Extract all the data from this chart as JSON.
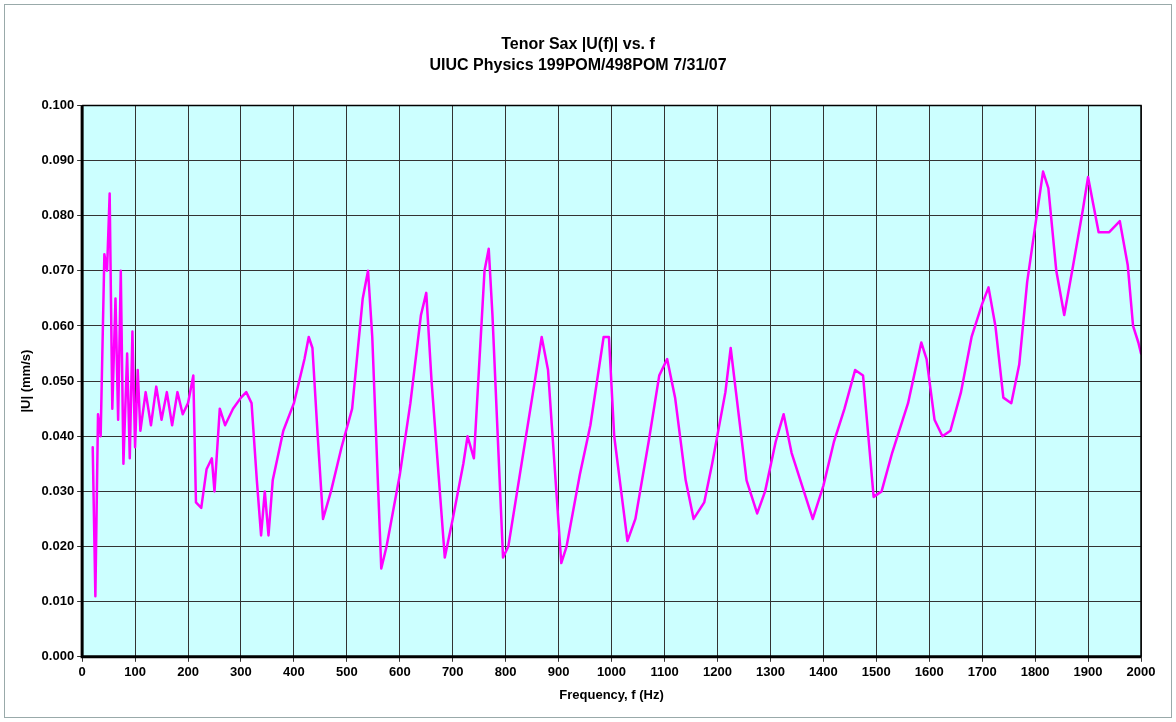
{
  "chart_data": {
    "type": "line",
    "title": "Tenor Sax |U(f)| vs. f",
    "subtitle": "UIUC Physics 199POM/498POM 7/31/07",
    "xlabel": "Frequency, f (Hz)",
    "ylabel": "|U| (mm/s)",
    "xlim": [
      0,
      2000
    ],
    "xticks": [
      0,
      100,
      200,
      300,
      400,
      500,
      600,
      700,
      800,
      900,
      1000,
      1100,
      1200,
      1300,
      1400,
      1500,
      1600,
      1700,
      1800,
      1900,
      2000
    ],
    "ylim": [
      0,
      0.1
    ],
    "yticks": [
      {
        "value": 0,
        "label": "0.000"
      },
      {
        "value": 0.01,
        "label": "0.010"
      },
      {
        "value": 0.02,
        "label": "0.020"
      },
      {
        "value": 0.03,
        "label": "0.030"
      },
      {
        "value": 0.04,
        "label": "0.040"
      },
      {
        "value": 0.05,
        "label": "0.050"
      },
      {
        "value": 0.06,
        "label": "0.060"
      },
      {
        "value": 0.07,
        "label": "0.070"
      },
      {
        "value": 0.08,
        "label": "0.080"
      },
      {
        "value": 0.09,
        "label": "0.090"
      },
      {
        "value": 0.1,
        "label": "0.100"
      }
    ],
    "grid": true,
    "legend": false,
    "marker": "none",
    "line_style": "solid",
    "series": [
      {
        "color": "#ff00ff",
        "x": [
          20,
          25,
          30,
          35,
          42,
          47,
          52,
          57,
          63,
          68,
          73,
          78,
          85,
          90,
          95,
          100,
          105,
          110,
          120,
          130,
          140,
          150,
          160,
          170,
          180,
          190,
          200,
          210,
          215,
          225,
          235,
          245,
          250,
          260,
          270,
          285,
          300,
          310,
          320,
          330,
          338,
          345,
          352,
          360,
          380,
          400,
          420,
          428,
          435,
          445,
          455,
          470,
          490,
          510,
          530,
          540,
          548,
          565,
          575,
          600,
          620,
          640,
          650,
          660,
          685,
          700,
          720,
          728,
          740,
          760,
          768,
          775,
          795,
          805,
          830,
          855,
          868,
          880,
          905,
          915,
          940,
          960,
          985,
          995,
          1005,
          1030,
          1045,
          1070,
          1090,
          1105,
          1120,
          1140,
          1155,
          1175,
          1190,
          1215,
          1225,
          1235,
          1255,
          1275,
          1290,
          1310,
          1325,
          1340,
          1360,
          1380,
          1400,
          1420,
          1440,
          1460,
          1475,
          1485,
          1495,
          1510,
          1530,
          1560,
          1585,
          1595,
          1610,
          1625,
          1640,
          1660,
          1680,
          1700,
          1712,
          1725,
          1740,
          1755,
          1770,
          1785,
          1800,
          1815,
          1825,
          1840,
          1855,
          1870,
          1890,
          1900,
          1910,
          1920,
          1940,
          1960,
          1975,
          1985,
          1995,
          2000
        ],
        "values": [
          0.038,
          0.011,
          0.044,
          0.04,
          0.073,
          0.07,
          0.084,
          0.045,
          0.065,
          0.043,
          0.07,
          0.035,
          0.055,
          0.036,
          0.059,
          0.038,
          0.052,
          0.041,
          0.048,
          0.042,
          0.049,
          0.043,
          0.048,
          0.042,
          0.048,
          0.044,
          0.046,
          0.051,
          0.028,
          0.027,
          0.034,
          0.036,
          0.03,
          0.045,
          0.042,
          0.045,
          0.047,
          0.048,
          0.046,
          0.032,
          0.022,
          0.03,
          0.022,
          0.032,
          0.041,
          0.046,
          0.054,
          0.058,
          0.056,
          0.04,
          0.025,
          0.03,
          0.038,
          0.045,
          0.065,
          0.07,
          0.058,
          0.016,
          0.02,
          0.033,
          0.046,
          0.062,
          0.066,
          0.05,
          0.018,
          0.025,
          0.035,
          0.04,
          0.036,
          0.07,
          0.074,
          0.062,
          0.018,
          0.02,
          0.035,
          0.05,
          0.058,
          0.052,
          0.017,
          0.02,
          0.033,
          0.042,
          0.058,
          0.058,
          0.04,
          0.021,
          0.025,
          0.039,
          0.051,
          0.054,
          0.047,
          0.032,
          0.025,
          0.028,
          0.035,
          0.048,
          0.056,
          0.048,
          0.032,
          0.026,
          0.03,
          0.039,
          0.044,
          0.037,
          0.031,
          0.025,
          0.031,
          0.039,
          0.045,
          0.052,
          0.051,
          0.04,
          0.029,
          0.03,
          0.037,
          0.046,
          0.057,
          0.054,
          0.043,
          0.04,
          0.041,
          0.048,
          0.058,
          0.064,
          0.067,
          0.06,
          0.047,
          0.046,
          0.053,
          0.068,
          0.078,
          0.088,
          0.085,
          0.07,
          0.062,
          0.07,
          0.081,
          0.087,
          0.082,
          0.077,
          0.077,
          0.079,
          0.071,
          0.06,
          0.057,
          0.055
        ]
      }
    ]
  }
}
